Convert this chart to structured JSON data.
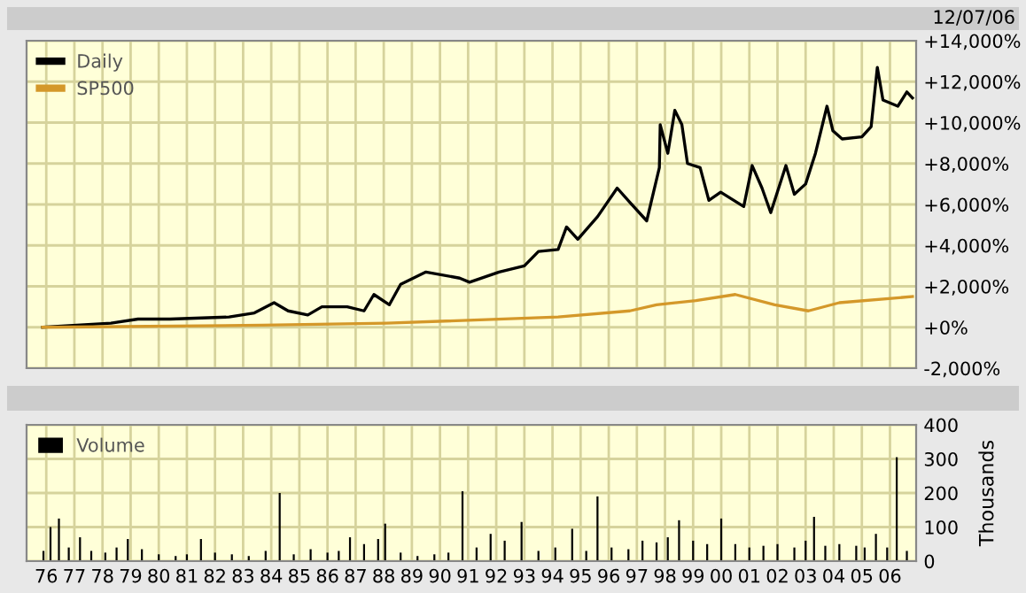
{
  "chart_data": [
    {
      "type": "line",
      "annotations": [
        "12/07/06"
      ],
      "xlim": [
        1975.3,
        2006.93
      ],
      "xticks": [
        {
          "value": 1976,
          "label": null
        },
        {
          "value": 1977,
          "label": null
        },
        {
          "value": 1978,
          "label": null
        },
        {
          "value": 1979,
          "label": null
        },
        {
          "value": 1980,
          "label": null
        },
        {
          "value": 1981,
          "label": null
        },
        {
          "value": 1982,
          "label": null
        },
        {
          "value": 1983,
          "label": null
        },
        {
          "value": 1984,
          "label": null
        },
        {
          "value": 1985,
          "label": null
        },
        {
          "value": 1986,
          "label": null
        },
        {
          "value": 1987,
          "label": null
        },
        {
          "value": 1988,
          "label": null
        },
        {
          "value": 1989,
          "label": null
        },
        {
          "value": 1990,
          "label": null
        },
        {
          "value": 1991,
          "label": null
        },
        {
          "value": 1992,
          "label": null
        },
        {
          "value": 1993,
          "label": null
        },
        {
          "value": 1994,
          "label": null
        },
        {
          "value": 1995,
          "label": null
        },
        {
          "value": 1996,
          "label": null
        },
        {
          "value": 1997,
          "label": null
        },
        {
          "value": 1998,
          "label": null
        },
        {
          "value": 1999,
          "label": null
        },
        {
          "value": 2000,
          "label": null
        },
        {
          "value": 2001,
          "label": null
        },
        {
          "value": 2002,
          "label": null
        },
        {
          "value": 2003,
          "label": null
        },
        {
          "value": 2004,
          "label": null
        },
        {
          "value": 2005,
          "label": null
        },
        {
          "value": 2006,
          "label": null
        }
      ],
      "ylim": [
        -2000,
        14000
      ],
      "yticks": [
        {
          "value": -2000,
          "label": "-2,000%"
        },
        {
          "value": 0,
          "label": "+0%"
        },
        {
          "value": 2000,
          "label": "+2,000%"
        },
        {
          "value": 4000,
          "label": "+4,000%"
        },
        {
          "value": 6000,
          "label": "+6,000%"
        },
        {
          "value": 8000,
          "label": "+8,000%"
        },
        {
          "value": 10000,
          "label": "+10,000%"
        },
        {
          "value": 12000,
          "label": "+12,000%"
        },
        {
          "value": 14000,
          "label": "+14,000%"
        }
      ],
      "tick_labels": "y",
      "grid": true,
      "legend": "top left",
      "marker": "none",
      "line_style": "solid",
      "series": [
        {
          "name": "Daily",
          "color": "#000000",
          "x": [
            1975.87,
            1978.3,
            1979.26,
            1980.4,
            1982.5,
            1983.4,
            1984.1,
            1984.6,
            1985.3,
            1985.8,
            1986.7,
            1987.3,
            1987.65,
            1988.2,
            1988.6,
            1989.5,
            1990.7,
            1991.05,
            1992.1,
            1993.0,
            1993.5,
            1994.2,
            1994.5,
            1994.9,
            1995.6,
            1996.3,
            1996.75,
            1997.35,
            1997.8,
            1997.83,
            1998.1,
            1998.35,
            1998.6,
            1998.8,
            1999.25,
            1999.56,
            1999.98,
            2000.8,
            2001.1,
            2001.45,
            2001.76,
            2002.3,
            2002.6,
            2003.0,
            2003.35,
            2003.76,
            2003.97,
            2004.3,
            2005.0,
            2005.33,
            2005.55,
            2005.75,
            2006.28,
            2006.6,
            2006.8
          ],
          "values": [
            0,
            200,
            400,
            400,
            500,
            700,
            1200,
            800,
            600,
            1000,
            1000,
            800,
            1600,
            1100,
            2100,
            2700,
            2400,
            2200,
            2700,
            3000,
            3700,
            3800,
            4900,
            4300,
            5400,
            6800,
            6100,
            5200,
            7800,
            9900,
            8500,
            10600,
            9900,
            8000,
            7800,
            6200,
            6600,
            5900,
            7900,
            6800,
            5600,
            7900,
            6500,
            7000,
            8500,
            10800,
            9600,
            9200,
            9300,
            9800,
            12700,
            11100,
            10800,
            11500,
            11200
          ]
        },
        {
          "name": "SP500",
          "color": "#d4982a",
          "x": [
            1975.87,
            1983.7,
            1988.1,
            1994.2,
            1996.75,
            1997.7,
            1999.1,
            2000.5,
            2001.9,
            2003.1,
            2004.2,
            2006.8
          ],
          "values": [
            0,
            100,
            200,
            500,
            800,
            1100,
            1300,
            1600,
            1100,
            800,
            1200,
            1500
          ]
        }
      ]
    },
    {
      "type": "bar",
      "ylabel": "Thousands",
      "xlim": [
        1975.3,
        2006.93
      ],
      "xticks": [
        {
          "value": 1976,
          "label": "76"
        },
        {
          "value": 1977,
          "label": "77"
        },
        {
          "value": 1978,
          "label": "78"
        },
        {
          "value": 1979,
          "label": "79"
        },
        {
          "value": 1980,
          "label": "80"
        },
        {
          "value": 1981,
          "label": "81"
        },
        {
          "value": 1982,
          "label": "82"
        },
        {
          "value": 1983,
          "label": "83"
        },
        {
          "value": 1984,
          "label": "84"
        },
        {
          "value": 1985,
          "label": "85"
        },
        {
          "value": 1986,
          "label": "86"
        },
        {
          "value": 1987,
          "label": "87"
        },
        {
          "value": 1988,
          "label": "88"
        },
        {
          "value": 1989,
          "label": "89"
        },
        {
          "value": 1990,
          "label": "90"
        },
        {
          "value": 1991,
          "label": "91"
        },
        {
          "value": 1992,
          "label": "92"
        },
        {
          "value": 1993,
          "label": "93"
        },
        {
          "value": 1994,
          "label": "94"
        },
        {
          "value": 1995,
          "label": "95"
        },
        {
          "value": 1996,
          "label": "96"
        },
        {
          "value": 1997,
          "label": "97"
        },
        {
          "value": 1998,
          "label": "98"
        },
        {
          "value": 1999,
          "label": "99"
        },
        {
          "value": 2000,
          "label": "00"
        },
        {
          "value": 2001,
          "label": "01"
        },
        {
          "value": 2002,
          "label": "02"
        },
        {
          "value": 2003,
          "label": "03"
        },
        {
          "value": 2004,
          "label": "04"
        },
        {
          "value": 2005,
          "label": "05"
        },
        {
          "value": 2006,
          "label": "06"
        }
      ],
      "ylim": [
        0,
        400
      ],
      "yticks": [
        0,
        100,
        200,
        300,
        400
      ],
      "grid": true,
      "legend": "top left",
      "series": [
        {
          "name": "Volume",
          "color": "#000000",
          "x": [
            1975.9,
            1976.15,
            1976.45,
            1976.8,
            1977.2,
            1977.6,
            1978.1,
            1978.5,
            1978.9,
            1979.4,
            1980.0,
            1980.6,
            1981.0,
            1981.5,
            1982.0,
            1982.6,
            1983.2,
            1983.8,
            1984.3,
            1984.8,
            1985.4,
            1986.0,
            1986.4,
            1986.8,
            1987.3,
            1987.8,
            1988.05,
            1988.6,
            1989.2,
            1989.8,
            1990.3,
            1990.8,
            1991.3,
            1991.8,
            1992.3,
            1992.9,
            1993.5,
            1994.1,
            1994.7,
            1995.2,
            1995.6,
            1996.1,
            1996.7,
            1997.2,
            1997.7,
            1998.1,
            1998.5,
            1999.0,
            1999.5,
            2000.0,
            2000.5,
            2001.0,
            2001.5,
            2002.0,
            2002.6,
            2003.0,
            2003.3,
            2003.7,
            2004.2,
            2004.8,
            2005.1,
            2005.5,
            2005.9,
            2006.24,
            2006.6
          ],
          "values": [
            30,
            100,
            125,
            40,
            70,
            30,
            25,
            40,
            65,
            35,
            20,
            15,
            20,
            65,
            25,
            20,
            15,
            30,
            200,
            20,
            35,
            25,
            30,
            70,
            50,
            65,
            110,
            25,
            15,
            20,
            25,
            205,
            40,
            80,
            60,
            115,
            30,
            40,
            95,
            30,
            190,
            40,
            35,
            60,
            55,
            70,
            120,
            60,
            50,
            125,
            50,
            40,
            45,
            50,
            40,
            60,
            130,
            45,
            50,
            45,
            40,
            80,
            40,
            305,
            30
          ]
        }
      ]
    }
  ]
}
